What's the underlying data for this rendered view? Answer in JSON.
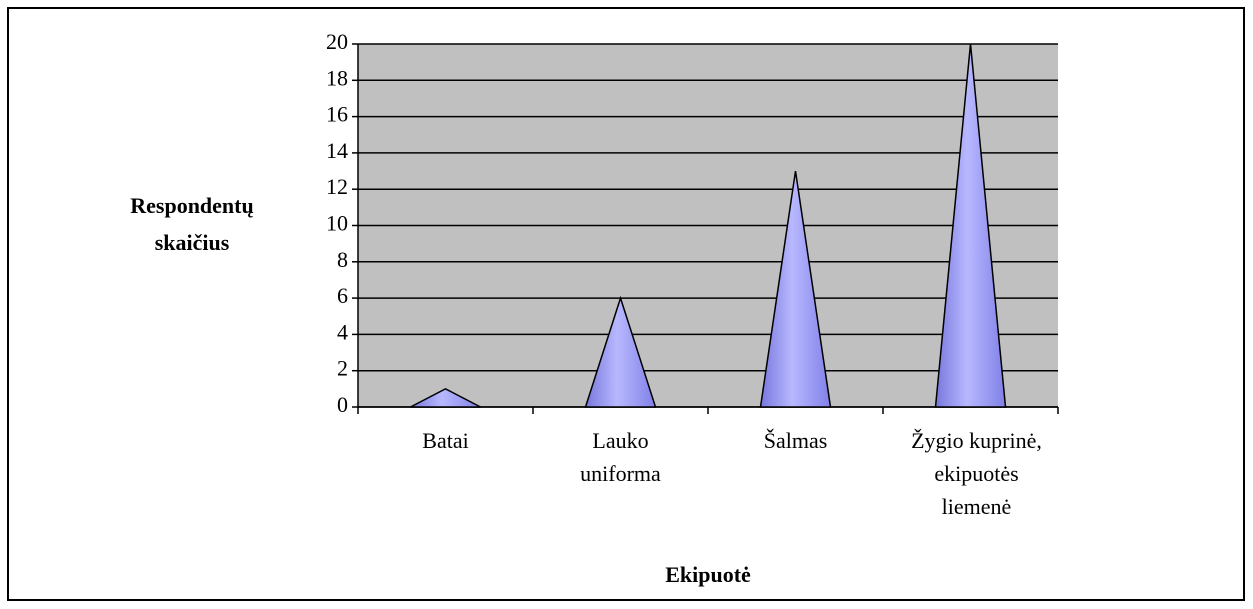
{
  "chart_data": {
    "type": "cone",
    "categories": [
      [
        "Batai"
      ],
      [
        "Lauko",
        "uniforma"
      ],
      [
        "Šalmas"
      ],
      [
        "Žygio kuprinė,",
        "ekipuotės",
        "liemenė"
      ]
    ],
    "values": [
      1,
      6,
      13,
      20
    ],
    "color": "#9999ff",
    "ylim": [
      0,
      20
    ],
    "yticks": [
      0,
      2,
      4,
      6,
      8,
      10,
      12,
      14,
      16,
      18,
      20
    ],
    "ylabel": [
      "Respondentų",
      "skaičius"
    ],
    "xlabel": "Ekipuotė",
    "grid": true
  }
}
